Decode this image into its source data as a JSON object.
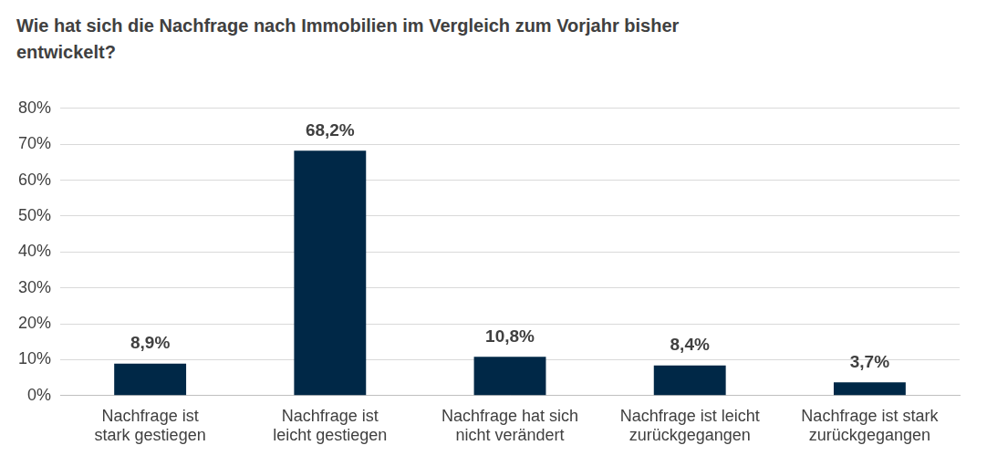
{
  "chart_data": {
    "type": "bar",
    "title": "Wie hat sich die Nachfrage nach Immobilien im Vergleich zum Vorjahr bisher entwickelt?",
    "categories": [
      "Nachfrage ist stark gestiegen",
      "Nachfrage ist leicht gestiegen",
      "Nachfrage hat sich nicht verändert",
      "Nachfrage ist leicht zurückgegangen",
      "Nachfrage ist stark zurückgegangen"
    ],
    "values": [
      8.9,
      68.2,
      10.8,
      8.4,
      3.7
    ],
    "value_labels": [
      "8,9%",
      "68,2%",
      "10,8%",
      "8,4%",
      "3,7%"
    ],
    "data_labels": true,
    "color": "#002847",
    "ylim": [
      0,
      80
    ],
    "yticks": [
      {
        "value": 0,
        "label": "0%"
      },
      {
        "value": 10,
        "label": "10%"
      },
      {
        "value": 20,
        "label": "20%"
      },
      {
        "value": 30,
        "label": "30%"
      },
      {
        "value": 40,
        "label": "40%"
      },
      {
        "value": 50,
        "label": "50%"
      },
      {
        "value": 60,
        "label": "60%"
      },
      {
        "value": 70,
        "label": "70%"
      },
      {
        "value": 80,
        "label": "80%"
      }
    ],
    "grid": true
  }
}
